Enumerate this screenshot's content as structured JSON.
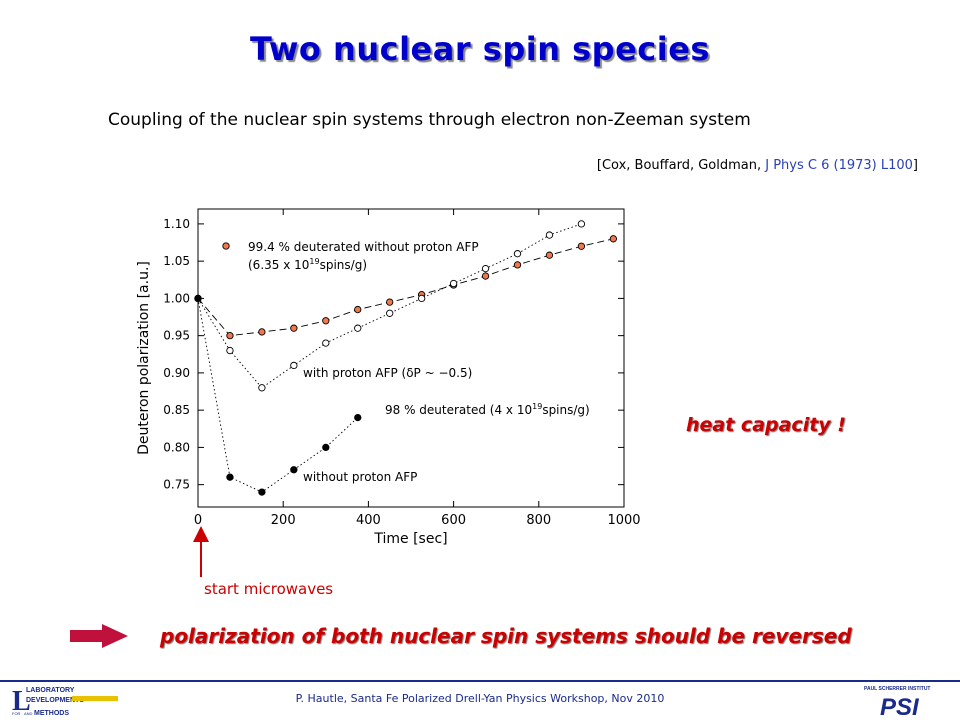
{
  "slide": {
    "title": "Two nuclear spin species",
    "subtitle": "Coupling of the nuclear spin systems through electron non-Zeeman system",
    "reference": {
      "open": "[Cox, Bouffard, Goldman, ",
      "journal": "J Phys C 6 (1973) L100",
      "close": "]"
    },
    "heat_capacity": "heat capacity !",
    "start_microwaves": "start microwaves",
    "conclusion": "polarization of both nuclear spin systems should be reversed",
    "footer": "P. Hautle, Santa Fe Polarized Drell-Yan Physics Workshop, Nov 2010",
    "logos": {
      "lab": [
        "LABORATORY",
        "DEVELOPMENTS",
        "FOR",
        "AND",
        "METHODS"
      ],
      "psi": [
        "PAUL SCHERRER INSTITUT",
        "PSI"
      ]
    },
    "colors": {
      "title": "#0000cc",
      "accent": "#cc0000",
      "footer": "#1a2a8a",
      "marker_fill": "#f07850"
    }
  },
  "chart_data": {
    "type": "scatter",
    "xlabel": "Time [sec]",
    "ylabel": "Deuteron polarization [a.u.]",
    "xlim": [
      0,
      1000
    ],
    "ylim": [
      0.72,
      1.12
    ],
    "xticks": [
      0,
      200,
      400,
      600,
      800,
      1000
    ],
    "yticks": [
      0.75,
      0.8,
      0.85,
      0.9,
      0.95,
      1.0,
      1.05,
      1.1
    ],
    "ytick_labels": [
      "0.75",
      "0.80",
      "0.85",
      "0.90",
      "0.95",
      "1.00",
      "1.05",
      "1.10"
    ],
    "grid": false,
    "series": [
      {
        "marker": "orange-filled",
        "line": "dashed",
        "x": [
          0,
          75,
          150,
          225,
          300,
          375,
          450,
          525,
          600,
          675,
          750,
          825,
          900,
          975
        ],
        "y": [
          1.0,
          0.95,
          0.955,
          0.96,
          0.97,
          0.985,
          0.995,
          1.005,
          1.018,
          1.03,
          1.045,
          1.058,
          1.07,
          1.08
        ]
      },
      {
        "marker": "open-circle",
        "line": "dotted",
        "x": [
          0,
          75,
          150,
          225,
          300,
          375,
          450,
          525,
          600,
          675,
          750,
          825,
          900
        ],
        "y": [
          1.0,
          0.93,
          0.88,
          0.91,
          0.94,
          0.96,
          0.98,
          1.0,
          1.02,
          1.04,
          1.06,
          1.085,
          1.1
        ]
      },
      {
        "marker": "black-filled",
        "line": "dotted",
        "x": [
          0,
          75,
          150,
          225,
          300,
          375
        ],
        "y": [
          1.0,
          0.76,
          0.74,
          0.77,
          0.8,
          0.84
        ]
      }
    ],
    "annotations": [
      {
        "lines": [
          "99.4 % deuterated without proton AFP",
          "(6.35 x 10",
          "19",
          "spins/g)"
        ]
      },
      {
        "text": "with proton AFP (δP ~ −0.5)"
      },
      {
        "parts": [
          "98 % deuterated (4 x 10",
          "19",
          "spins/g)"
        ]
      },
      {
        "text": "without proton AFP"
      }
    ]
  }
}
